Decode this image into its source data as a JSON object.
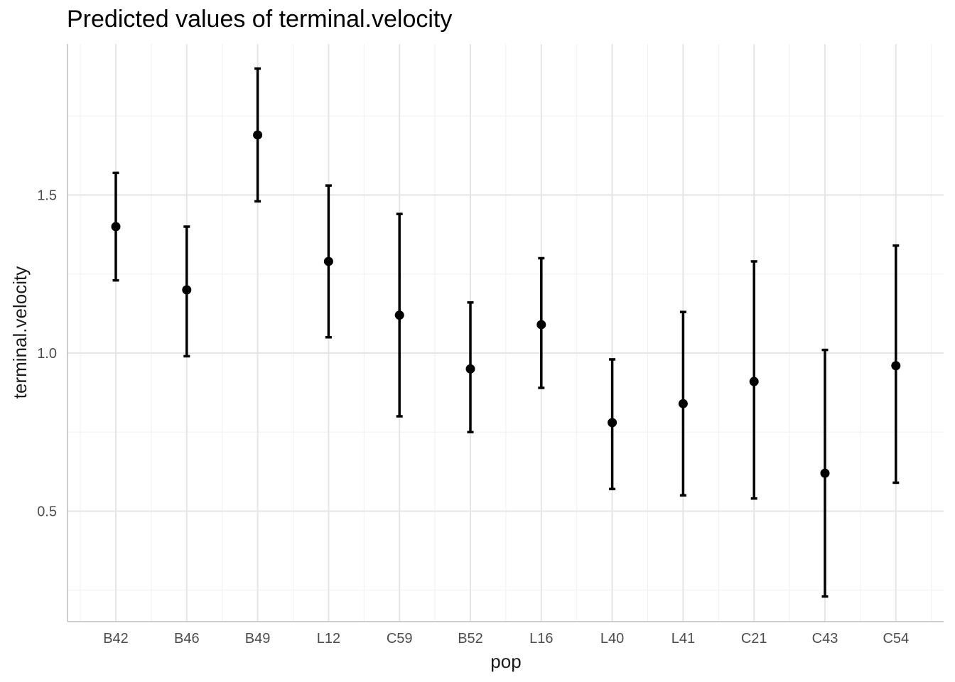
{
  "chart_data": {
    "type": "scatter",
    "subtype": "point-with-error-bars",
    "title": "Predicted values of terminal.velocity",
    "xlabel": "pop",
    "ylabel": "terminal.velocity",
    "categories": [
      "B42",
      "B46",
      "B49",
      "L12",
      "C59",
      "B52",
      "L16",
      "L40",
      "L41",
      "C21",
      "C43",
      "C54"
    ],
    "predicted": [
      1.4,
      1.2,
      1.69,
      1.29,
      1.12,
      0.95,
      1.09,
      0.78,
      0.84,
      0.91,
      0.62,
      0.96
    ],
    "conf_low": [
      1.23,
      0.99,
      1.48,
      1.05,
      0.8,
      0.75,
      0.89,
      0.57,
      0.55,
      0.54,
      0.23,
      0.59
    ],
    "conf_high": [
      1.57,
      1.4,
      1.9,
      1.53,
      1.44,
      1.16,
      1.3,
      0.98,
      1.13,
      1.29,
      1.01,
      1.34
    ],
    "ylim": [
      0.19,
      1.95
    ],
    "y_major_ticks": [
      0.5,
      1.0,
      1.5
    ],
    "y_tick_labels": [
      "0.5",
      "1.0",
      "1.5"
    ],
    "y_minor_ticks": [
      0.25,
      0.75,
      1.25,
      1.75
    ],
    "grid": true,
    "legend": "none",
    "colors": {
      "point": "#000000",
      "grid_major": "#e5e5e5",
      "grid_minor": "#f0f0f0",
      "axis_line": "#bdbdbd",
      "tick_text": "#4d4d4d"
    }
  }
}
